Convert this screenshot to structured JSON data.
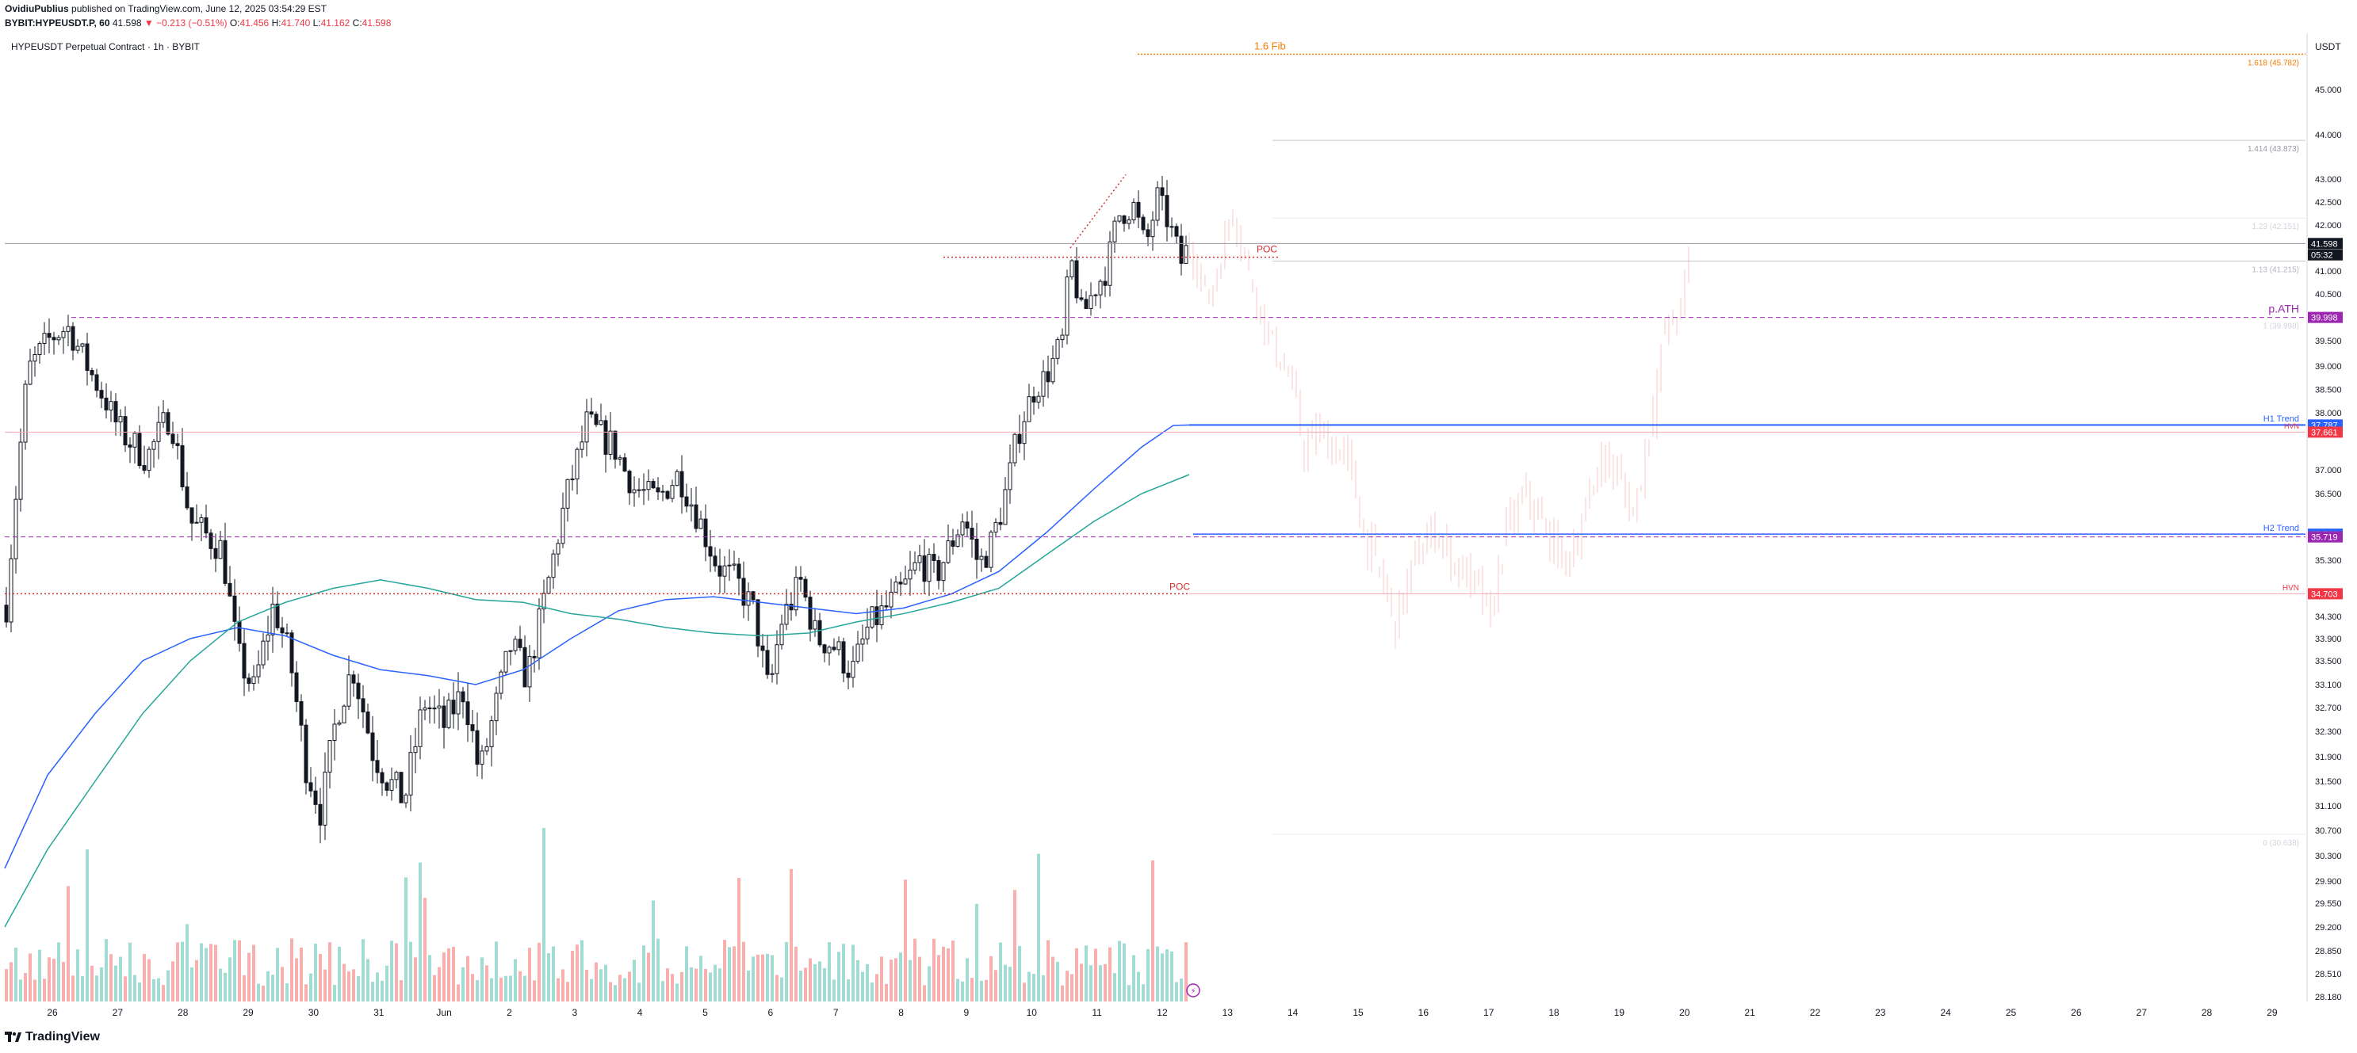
{
  "header": {
    "author": "OvidiuPublius",
    "published_text": "published on TradingView.com, June 12, 2025 03:54:29 EST",
    "symbol": "BYBIT:HYPEUSDT.P, 60",
    "price": "41.598",
    "change": "▼ −0.213 (−0.51%)",
    "ohlc_o_label": "O:",
    "ohlc_o": "41.456",
    "ohlc_h_label": "H:",
    "ohlc_h": "41.740",
    "ohlc_l_label": "L:",
    "ohlc_l": "41.162",
    "ohlc_c_label": "C:",
    "ohlc_c": "41.598"
  },
  "pane_title": "HYPEUSDT Perpetual Contract · 1h · BYBIT",
  "currency": "USDT",
  "footer": {
    "brand": "TradingView"
  },
  "colors": {
    "up": "#26a69a",
    "down": "#ef5350",
    "candle": "#131722",
    "fib": "#f57c00",
    "poc": "#d32f2f",
    "ath": "#9c27b0",
    "trend": "#2962ff",
    "ema_teal": "#26a69a",
    "ema_blue": "#2962ff"
  },
  "chart_data": {
    "type": "candlestick",
    "ylim": [
      28.18,
      46.0
    ],
    "x_tick_labels": [
      "26",
      "27",
      "28",
      "29",
      "30",
      "31",
      "Jun",
      "2",
      "3",
      "4",
      "5",
      "6",
      "7",
      "8",
      "9",
      "10",
      "11",
      "12",
      "13",
      "14",
      "15",
      "16",
      "17",
      "18",
      "19",
      "20",
      "21",
      "22",
      "23",
      "24",
      "25",
      "26",
      "27",
      "28",
      "29"
    ],
    "y_tick_labels": [
      "45.000",
      "44.000",
      "43.000",
      "42.500",
      "42.000",
      "41.000",
      "40.500",
      "39.500",
      "39.000",
      "38.500",
      "38.000",
      "37.000",
      "36.500",
      "35.300",
      "34.300",
      "33.900",
      "33.500",
      "33.100",
      "32.700",
      "32.300",
      "31.900",
      "31.500",
      "31.100",
      "30.700",
      "30.300",
      "29.900",
      "29.550",
      "29.200",
      "28.850",
      "28.510",
      "28.180"
    ],
    "price_tags": [
      {
        "label": "41.598",
        "value": 41.598,
        "color": "#131722",
        "text": "#ffffff"
      },
      {
        "label": "05:32",
        "value": 41.35,
        "color": "#131722",
        "text": "#ffffff"
      },
      {
        "label": "39.998",
        "value": 39.998,
        "color": "#9c27b0",
        "text": "#ffffff"
      },
      {
        "label": "37.787",
        "value": 37.787,
        "color": "#2962ff",
        "text": "#ffffff"
      },
      {
        "label": "37.661",
        "value": 37.661,
        "color": "#f23645",
        "text": "#ffffff"
      },
      {
        "label": "35.769",
        "value": 35.769,
        "color": "#2962ff",
        "text": "#ffffff"
      },
      {
        "label": "35.719",
        "value": 35.719,
        "color": "#9c27b0",
        "text": "#ffffff"
      },
      {
        "label": "34.703",
        "value": 34.703,
        "color": "#f23645",
        "text": "#ffffff"
      }
    ],
    "fib_levels": [
      {
        "label": "1.618 (45.782)",
        "value": 45.782
      },
      {
        "label": "1.414 (43.873)",
        "value": 43.873
      },
      {
        "label": "1.23 (42.151)",
        "value": 42.151
      },
      {
        "label": "1.13 (41.215)",
        "value": 41.215
      },
      {
        "label": "1 (39.998)",
        "value": 39.998
      },
      {
        "label": "0 (30.638)",
        "value": 30.638
      }
    ],
    "annotations": [
      {
        "label": "1.6 Fib",
        "value": 45.78
      },
      {
        "label": "POC",
        "value": 41.3
      },
      {
        "label": "POC",
        "value": 34.7
      },
      {
        "label": "p.ATH",
        "value": 39.998
      },
      {
        "label": "H1 Trend",
        "value": 37.787
      },
      {
        "label": "HVN",
        "value": 37.661
      },
      {
        "label": "H2 Trend",
        "value": 35.769
      },
      {
        "label": "HVN",
        "value": 34.703
      }
    ],
    "candles": [],
    "volumes": []
  }
}
